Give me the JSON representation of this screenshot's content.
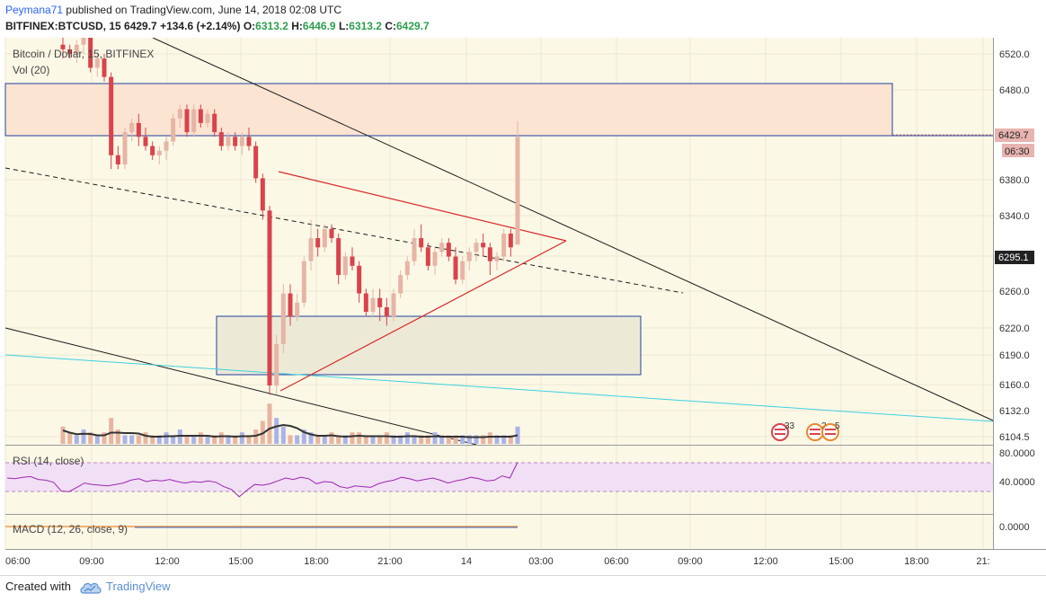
{
  "header": {
    "author": "Peymana71",
    "published_text": "published on TradingView.com, June 14, 2018 02:08 UTC",
    "symbol": "BITFINEX:BTCUSD, 15",
    "last": "6429.7",
    "change": "+134.6 (+2.14%)",
    "o_label": "O:",
    "o_value": "6313.2",
    "h_label": "H:",
    "h_value": "6446.9",
    "l_label": "L:",
    "l_value": "6313.2",
    "c_label": "C:",
    "c_value": "6429.7"
  },
  "legend": {
    "series_title": "Bitcoin / Dollar, 15, BITFINEX",
    "volume_label": "Vol (20)",
    "rsi_label": "RSI (14, close)",
    "macd_label": "MACD (12, 26, close, 9)"
  },
  "badges": {
    "last_price": "6429.7",
    "countdown": "06:30",
    "level_price": "6295.1"
  },
  "event_icons": [
    "33",
    "2",
    "5"
  ],
  "footer": {
    "created_with": "Created with",
    "brand": "TradingView"
  },
  "colors": {
    "background": "#fcf8e6",
    "up": "#e6b5a6",
    "down": "#d9434c",
    "trendline": "#d82a2a",
    "channel": "#1a1a1a",
    "support": "#3ed0e0",
    "zone_border": "#2140a0",
    "resistance_fill": "#fbe4d2",
    "support_fill": "#ecead6",
    "rsi_line": "#9c27b0",
    "rsi_band": "#f1dff5",
    "volume_ma": "#333333",
    "volume_up": "#aab3e8",
    "volume_down": "#e8b4a2"
  },
  "chart_data": {
    "type": "candlestick",
    "y_ticks": [
      "6520.0",
      "6480.0",
      "6429.7",
      "6380.0",
      "6340.0",
      "6295.1",
      "6260.0",
      "6220.0",
      "6190.0",
      "6160.0",
      "6132.0",
      "6104.5"
    ],
    "x_ticks": [
      "06:00",
      "09:00",
      "12:00",
      "15:00",
      "18:00",
      "21:00",
      "14",
      "03:00",
      "06:00",
      "09:00",
      "12:00",
      "15:00",
      "18:00",
      "21:"
    ],
    "ohlc": [
      [
        6530,
        6540,
        6515,
        6525
      ],
      [
        6525,
        6530,
        6515,
        6520
      ],
      [
        6520,
        6535,
        6510,
        6530
      ],
      [
        6530,
        6545,
        6520,
        6540
      ],
      [
        6540,
        6540,
        6500,
        6505
      ],
      [
        6505,
        6520,
        6495,
        6515
      ],
      [
        6515,
        6520,
        6490,
        6495
      ],
      [
        6495,
        6500,
        6395,
        6410
      ],
      [
        6410,
        6420,
        6395,
        6400
      ],
      [
        6400,
        6440,
        6395,
        6435
      ],
      [
        6435,
        6450,
        6425,
        6445
      ],
      [
        6445,
        6455,
        6420,
        6430
      ],
      [
        6430,
        6440,
        6415,
        6420
      ],
      [
        6420,
        6425,
        6405,
        6410
      ],
      [
        6410,
        6420,
        6400,
        6415
      ],
      [
        6415,
        6430,
        6405,
        6425
      ],
      [
        6425,
        6455,
        6420,
        6450
      ],
      [
        6450,
        6465,
        6440,
        6460
      ],
      [
        6460,
        6465,
        6430,
        6435
      ],
      [
        6435,
        6465,
        6430,
        6460
      ],
      [
        6460,
        6465,
        6440,
        6445
      ],
      [
        6445,
        6460,
        6440,
        6455
      ],
      [
        6455,
        6460,
        6430,
        6435
      ],
      [
        6435,
        6440,
        6415,
        6420
      ],
      [
        6420,
        6435,
        6415,
        6430
      ],
      [
        6430,
        6435,
        6415,
        6420
      ],
      [
        6420,
        6435,
        6410,
        6430
      ],
      [
        6430,
        6440,
        6415,
        6420
      ],
      [
        6420,
        6425,
        6380,
        6385
      ],
      [
        6385,
        6390,
        6340,
        6350
      ],
      [
        6350,
        6355,
        6150,
        6160
      ],
      [
        6160,
        6215,
        6150,
        6205
      ],
      [
        6205,
        6270,
        6195,
        6260
      ],
      [
        6260,
        6270,
        6225,
        6235
      ],
      [
        6235,
        6260,
        6230,
        6250
      ],
      [
        6250,
        6300,
        6245,
        6295
      ],
      [
        6295,
        6340,
        6285,
        6320
      ],
      [
        6320,
        6330,
        6300,
        6310
      ],
      [
        6310,
        6335,
        6305,
        6330
      ],
      [
        6330,
        6335,
        6315,
        6320
      ],
      [
        6320,
        6325,
        6270,
        6280
      ],
      [
        6280,
        6305,
        6275,
        6300
      ],
      [
        6300,
        6310,
        6285,
        6290
      ],
      [
        6290,
        6295,
        6250,
        6260
      ],
      [
        6260,
        6265,
        6235,
        6240
      ],
      [
        6240,
        6265,
        6235,
        6255
      ],
      [
        6255,
        6265,
        6230,
        6245
      ],
      [
        6245,
        6255,
        6225,
        6235
      ],
      [
        6235,
        6265,
        6230,
        6260
      ],
      [
        6260,
        6285,
        6255,
        6280
      ],
      [
        6280,
        6300,
        6275,
        6295
      ],
      [
        6295,
        6330,
        6290,
        6320
      ],
      [
        6320,
        6335,
        6305,
        6310
      ],
      [
        6310,
        6315,
        6285,
        6290
      ],
      [
        6290,
        6310,
        6280,
        6305
      ],
      [
        6305,
        6320,
        6300,
        6315
      ],
      [
        6315,
        6320,
        6295,
        6300
      ],
      [
        6300,
        6310,
        6270,
        6275
      ],
      [
        6275,
        6300,
        6270,
        6295
      ],
      [
        6295,
        6310,
        6285,
        6305
      ],
      [
        6305,
        6320,
        6295,
        6315
      ],
      [
        6315,
        6325,
        6300,
        6310
      ],
      [
        6310,
        6315,
        6280,
        6295
      ],
      [
        6295,
        6305,
        6285,
        6300
      ],
      [
        6300,
        6330,
        6295,
        6325
      ],
      [
        6325,
        6330,
        6300,
        6310
      ],
      [
        6313,
        6447,
        6313,
        6430
      ]
    ],
    "volume": [
      6,
      4,
      3,
      5,
      4,
      3,
      4,
      9,
      5,
      3,
      3,
      3,
      4,
      3,
      3,
      4,
      3,
      5,
      3,
      3,
      4,
      3,
      3,
      4,
      3,
      3,
      4,
      3,
      5,
      8,
      14,
      9,
      6,
      3,
      3,
      5,
      4,
      3,
      3,
      4,
      3,
      3,
      4,
      4,
      3,
      3,
      3,
      4,
      3,
      3,
      4,
      3,
      3,
      3,
      4,
      3,
      3,
      3,
      3,
      3,
      3,
      3,
      4,
      3,
      3,
      3,
      6
    ],
    "rsi": [
      50,
      49,
      51,
      52,
      48,
      47,
      44,
      32,
      31,
      37,
      43,
      41,
      40,
      39,
      41,
      43,
      47,
      49,
      45,
      47,
      46,
      48,
      45,
      43,
      45,
      44,
      46,
      44,
      38,
      34,
      24,
      33,
      41,
      40,
      42,
      46,
      50,
      48,
      51,
      49,
      42,
      45,
      44,
      38,
      36,
      39,
      38,
      37,
      42,
      45,
      47,
      51,
      49,
      46,
      48,
      50,
      47,
      43,
      46,
      48,
      51,
      49,
      46,
      47,
      53,
      50,
      72
    ],
    "rsi_levels": [
      70,
      30
    ],
    "rsi_ticks": [
      "80.0000",
      "40.0000"
    ],
    "macd_ticks": [
      "0.0000"
    ]
  }
}
